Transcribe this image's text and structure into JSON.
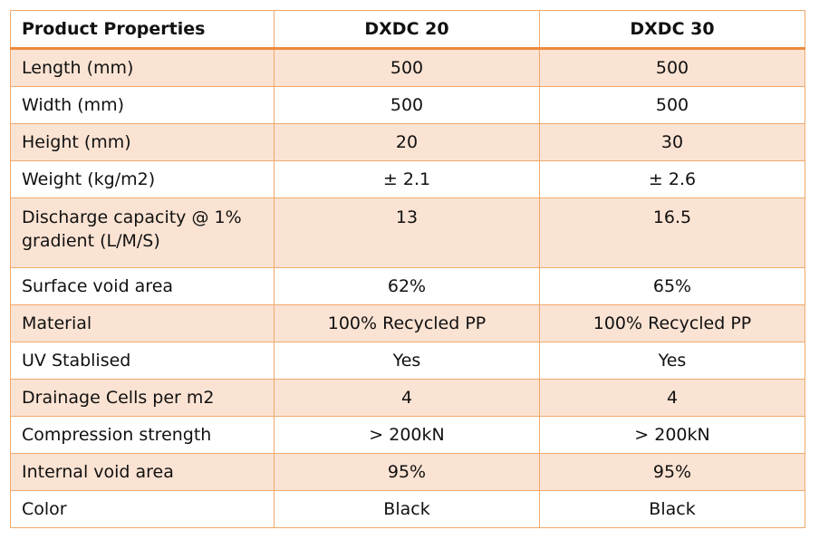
{
  "table": {
    "headers": [
      "Product Properties",
      "DXDC 20",
      "DXDC 30"
    ],
    "rows": [
      {
        "property": "Length (mm)",
        "dxdc20": "500",
        "dxdc30": "500"
      },
      {
        "property": "Width (mm)",
        "dxdc20": "500",
        "dxdc30": "500"
      },
      {
        "property": "Height (mm)",
        "dxdc20": "20",
        "dxdc30": "30"
      },
      {
        "property": "Weight (kg/m2)",
        "dxdc20": "± 2.1",
        "dxdc30": "± 2.6"
      },
      {
        "property": "Discharge capacity @ 1% gradient (L/M/S)",
        "dxdc20": "13",
        "dxdc30": "16.5"
      },
      {
        "property": "Surface void area",
        "dxdc20": "62%",
        "dxdc30": "65%"
      },
      {
        "property": "Material",
        "dxdc20": "100% Recycled PP",
        "dxdc30": "100% Recycled PP"
      },
      {
        "property": "UV Stablised",
        "dxdc20": "Yes",
        "dxdc30": "Yes"
      },
      {
        "property": "Drainage Cells per m2",
        "dxdc20": "4",
        "dxdc30": "4"
      },
      {
        "property": "Compression strength",
        "dxdc20": "> 200kN",
        "dxdc30": "> 200kN"
      },
      {
        "property": "Internal void area",
        "dxdc20": "95%",
        "dxdc30": "95%"
      },
      {
        "property": "Color",
        "dxdc20": "Black",
        "dxdc30": "Black"
      }
    ]
  },
  "colors": {
    "border": "#f0a96c",
    "header_rule": "#ee8a3c",
    "band": "#fbe3d3"
  }
}
